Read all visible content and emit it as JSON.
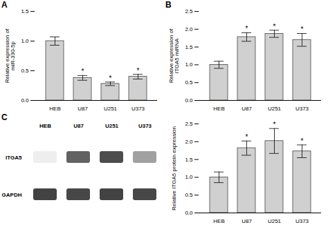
{
  "chart_data": [
    {
      "type": "bar",
      "title": "A",
      "categories": [
        "HEB",
        "U87",
        "U251",
        "U373"
      ],
      "values": [
        1.0,
        0.38,
        0.28,
        0.4
      ],
      "errors": [
        0.07,
        0.04,
        0.03,
        0.04
      ],
      "color": "#d0d0d0",
      "ylabel": "Relative expression of\nmiR-330-5p",
      "ylim": [
        0,
        1.5
      ],
      "yticks": [
        {
          "value": 0,
          "label": "0.0"
        },
        0.5,
        {
          "value": 1,
          "label": "1.0"
        },
        1.5
      ],
      "grid": false,
      "annotations": [
        {
          "category": "U87",
          "text": "*"
        },
        {
          "category": "U251",
          "text": "*"
        },
        {
          "category": "U373",
          "text": "*"
        }
      ]
    },
    {
      "type": "bar",
      "title": "B",
      "categories": [
        "HEB",
        "U87",
        "U251",
        "U373"
      ],
      "values": [
        1.0,
        1.78,
        1.87,
        1.7
      ],
      "errors": [
        0.1,
        0.12,
        0.1,
        0.18
      ],
      "color": "#d0d0d0",
      "ylabel": "Relative expression of\nITGA5 miRNA",
      "ylim": [
        0,
        2.5
      ],
      "yticks": [
        {
          "value": 0,
          "label": "0.0"
        },
        0.5,
        {
          "value": 1,
          "label": "1.0"
        },
        1.5,
        {
          "value": 2,
          "label": "2.0"
        },
        2.5
      ],
      "grid": false,
      "annotations": [
        {
          "category": "U87",
          "text": "*"
        },
        {
          "category": "U251",
          "text": "*"
        },
        {
          "category": "U373",
          "text": "*"
        }
      ]
    },
    {
      "type": "heatmap",
      "title": "C",
      "categories": [
        "HEB",
        "U87",
        "U251",
        "U373"
      ],
      "series": [
        {
          "name": "ITGA5",
          "values": [
            0.08,
            0.75,
            0.85,
            0.45
          ]
        },
        {
          "name": "GAPDH",
          "values": [
            0.9,
            0.88,
            0.9,
            0.88
          ]
        }
      ]
    },
    {
      "type": "bar",
      "categories": [
        "HEB",
        "U87",
        "U251",
        "U373"
      ],
      "values": [
        1.0,
        1.82,
        2.02,
        1.73
      ],
      "errors": [
        0.15,
        0.2,
        0.35,
        0.18
      ],
      "color": "#d0d0d0",
      "ylabel": "Relative ITGA5 protein expression",
      "ylim": [
        0,
        2.5
      ],
      "yticks": [
        {
          "value": 0,
          "label": "0.0"
        },
        0.5,
        {
          "value": 1,
          "label": "1.0"
        },
        1.5,
        {
          "value": 2,
          "label": "2.0"
        },
        2.5
      ],
      "grid": false,
      "annotations": [
        {
          "category": "U87",
          "text": "*"
        },
        {
          "category": "U251",
          "text": "*"
        },
        {
          "category": "U373",
          "text": "*"
        }
      ]
    }
  ]
}
